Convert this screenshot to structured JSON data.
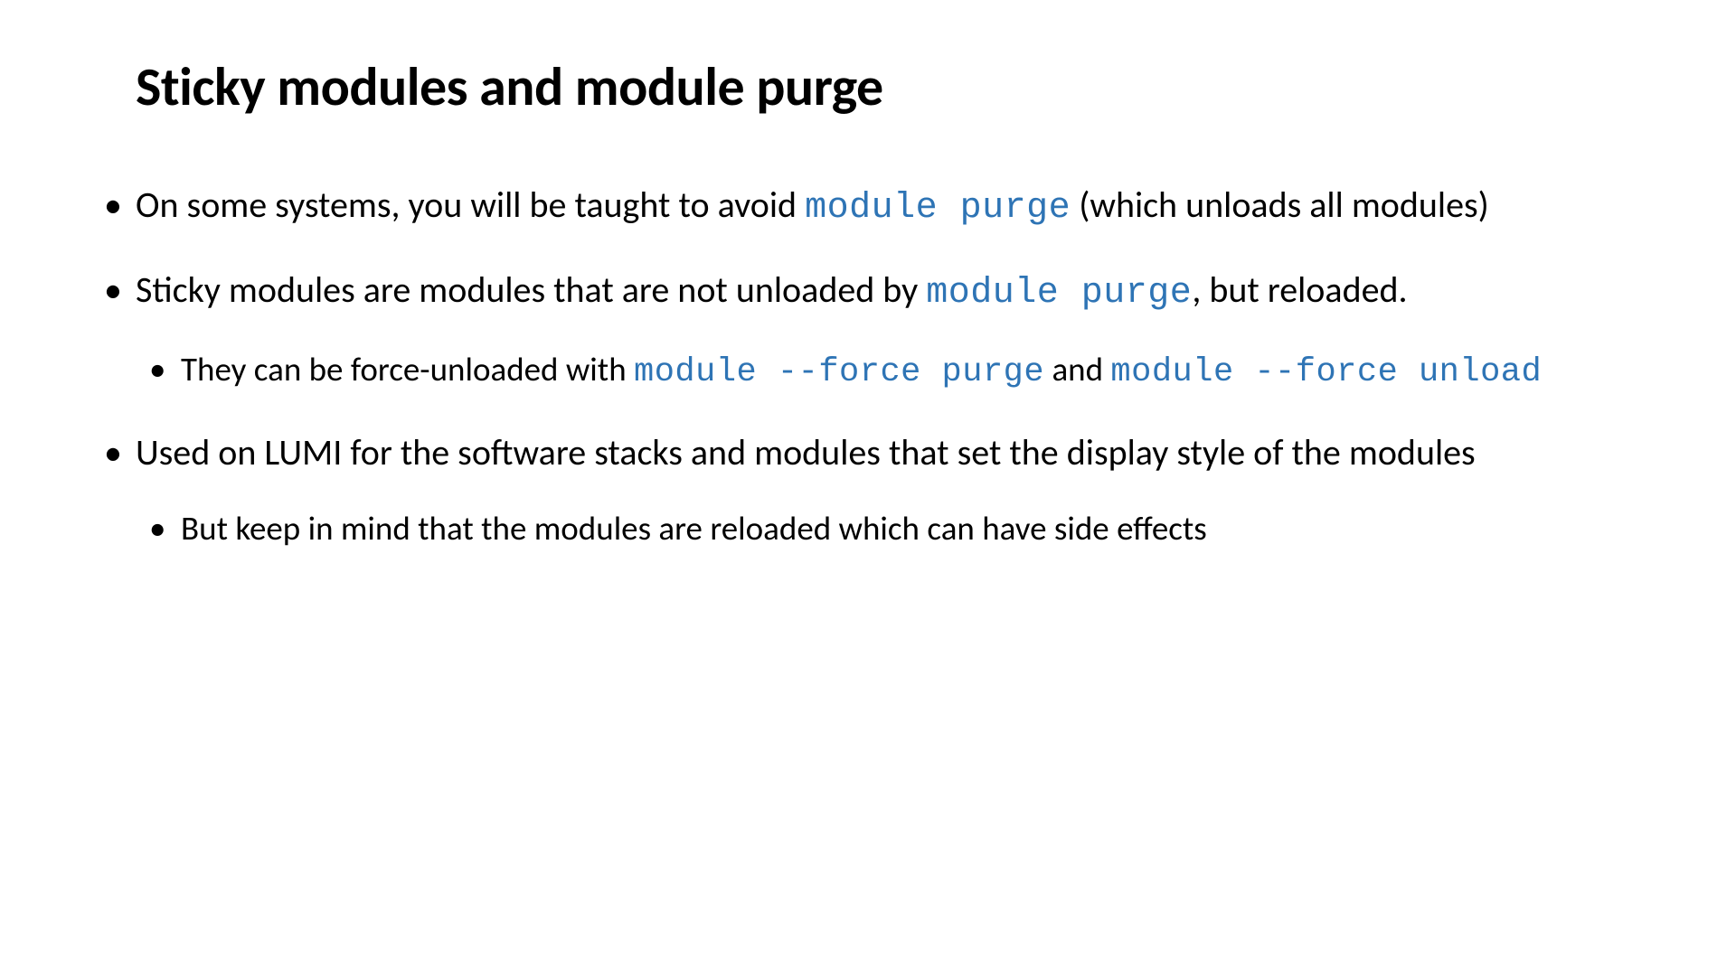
{
  "slide": {
    "title": "Sticky modules and module purge",
    "bullets": [
      {
        "prefix": "On some systems, you will be taught to avoid ",
        "code1": "module purge",
        "suffix": " (which unloads all modules)"
      },
      {
        "prefix": "Sticky modules are modules that are not unloaded by ",
        "code1": "module purge",
        "suffix": ", but reloaded.",
        "sub": [
          {
            "prefix": "They can be force-unloaded with ",
            "code1": "module --force purge",
            "middle": " and ",
            "code2": "module --force unload"
          }
        ]
      },
      {
        "prefix": "Used on LUMI for the software stacks and modules that set the display style of the modules",
        "sub": [
          {
            "prefix": "But keep in mind that the modules are reloaded which can have side effects"
          }
        ]
      }
    ]
  },
  "colors": {
    "text": "#000000",
    "code": "#2e74b5",
    "background": "#ffffff"
  },
  "typography": {
    "title_size": 60,
    "body_size": 40,
    "sub_size": 37
  }
}
